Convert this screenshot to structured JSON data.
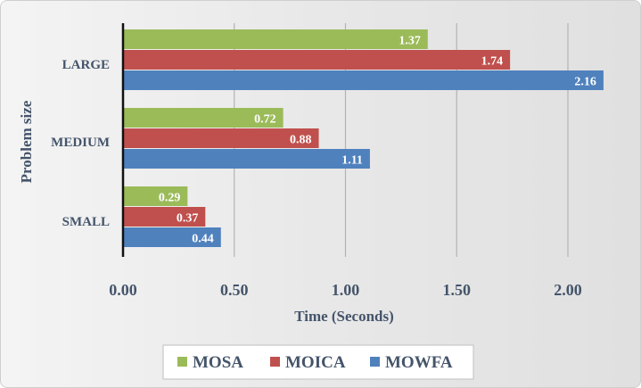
{
  "chart_data": {
    "type": "bar",
    "orientation": "horizontal",
    "categories": [
      "SMALL",
      "MEDIUM",
      "LARGE"
    ],
    "series": [
      {
        "name": "MOSA",
        "color": "#9bbb59",
        "values": [
          0.29,
          0.72,
          1.37
        ]
      },
      {
        "name": "MOICA",
        "color": "#c0504d",
        "values": [
          0.37,
          0.88,
          1.74
        ]
      },
      {
        "name": "MOWFA",
        "color": "#4f81bd",
        "values": [
          0.44,
          1.11,
          2.16
        ]
      }
    ],
    "xlabel": "Time (Seconds)",
    "ylabel": "Problem size",
    "xlim": [
      0,
      2.2
    ],
    "xticks": [
      "0.00",
      "0.50",
      "1.00",
      "1.50",
      "2.00"
    ],
    "xtick_values": [
      0,
      0.5,
      1.0,
      1.5,
      2.0
    ],
    "grid": true,
    "legend": "bottom",
    "data_labels": true
  }
}
